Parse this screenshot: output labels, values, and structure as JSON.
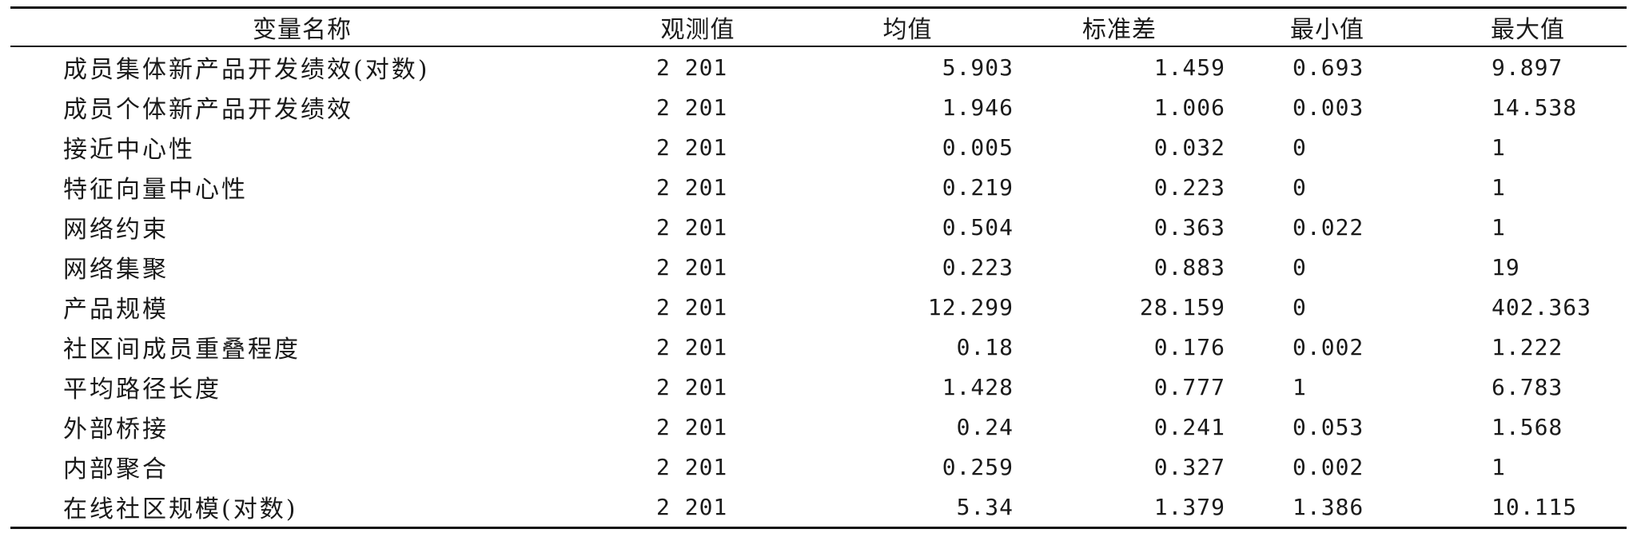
{
  "table": {
    "headers": [
      "变量名称",
      "观测值",
      "均值",
      "标准差",
      "最小值",
      "最大值"
    ],
    "rows": [
      {
        "name": "成员集体新产品开发绩效(对数)",
        "obs": "2 201",
        "mean": "5.903",
        "sd": "1.459",
        "min": "0.693",
        "max": "9.897"
      },
      {
        "name": "成员个体新产品开发绩效",
        "obs": "2 201",
        "mean": "1.946",
        "sd": "1.006",
        "min": "0.003",
        "max": "14.538"
      },
      {
        "name": "接近中心性",
        "obs": "2 201",
        "mean": "0.005",
        "sd": "0.032",
        "min": "0",
        "max": "1"
      },
      {
        "name": "特征向量中心性",
        "obs": "2 201",
        "mean": "0.219",
        "sd": "0.223",
        "min": "0",
        "max": "1"
      },
      {
        "name": "网络约束",
        "obs": "2 201",
        "mean": "0.504",
        "sd": "0.363",
        "min": "0.022",
        "max": "1"
      },
      {
        "name": "网络集聚",
        "obs": "2 201",
        "mean": "0.223",
        "sd": "0.883",
        "min": "0",
        "max": "19"
      },
      {
        "name": "产品规模",
        "obs": "2 201",
        "mean": "12.299",
        "sd": "28.159",
        "min": "0",
        "max": "402.363"
      },
      {
        "name": "社区间成员重叠程度",
        "obs": "2 201",
        "mean": "0.18",
        "sd": "0.176",
        "min": "0.002",
        "max": "1.222"
      },
      {
        "name": "平均路径长度",
        "obs": "2 201",
        "mean": "1.428",
        "sd": "0.777",
        "min": "1",
        "max": "6.783"
      },
      {
        "name": "外部桥接",
        "obs": "2 201",
        "mean": "0.24",
        "sd": "0.241",
        "min": "0.053",
        "max": "1.568"
      },
      {
        "name": "内部聚合",
        "obs": "2 201",
        "mean": "0.259",
        "sd": "0.327",
        "min": "0.002",
        "max": "1"
      },
      {
        "name": "在线社区规模(对数)",
        "obs": "2 201",
        "mean": "5.34",
        "sd": "1.379",
        "min": "1.386",
        "max": "10.115"
      }
    ]
  }
}
